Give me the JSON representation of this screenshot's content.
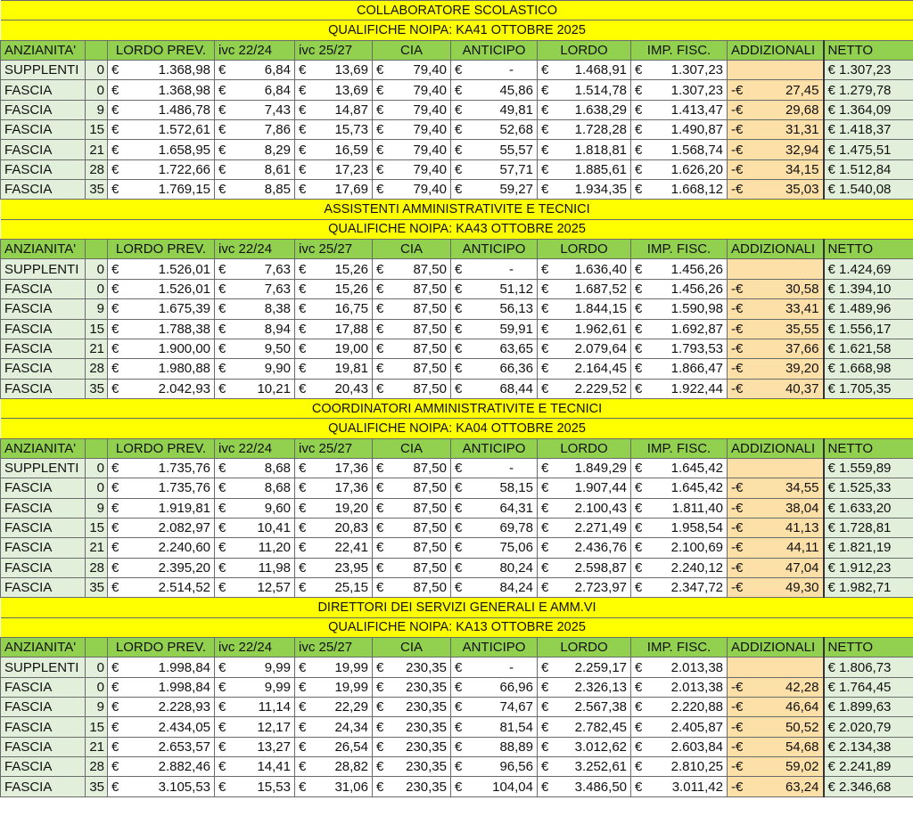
{
  "currency": "€",
  "neg_currency": "-€",
  "columns": [
    "ANZIANITA'",
    "",
    "LORDO PREV.",
    "ivc 22/24",
    "ivc 25/27",
    "CIA",
    "ANTICIPO",
    "LORDO",
    "IMP. FISC.",
    "ADDIZIONALI",
    "NETTO"
  ],
  "colors": {
    "title_bg": "#ffff00",
    "header_bg": "#92d050",
    "label_bg": "#e2efda",
    "addizionali_bg": "#fde0a8",
    "netto_bg": "#e2efda"
  },
  "sections": [
    {
      "title": "COLLABORATORE SCOLASTICO",
      "subtitle": "QUALIFICHE NOIPA: KA41 OTTOBRE 2025",
      "rows": [
        [
          "SUPPLENTI",
          "0",
          "1.368,98",
          "6,84",
          "13,69",
          "79,40",
          "-",
          "1.468,91",
          "1.307,23",
          "",
          "€ 1.307,23"
        ],
        [
          "FASCIA",
          "0",
          "1.368,98",
          "6,84",
          "13,69",
          "79,40",
          "45,86",
          "1.514,78",
          "1.307,23",
          "27,45",
          "€ 1.279,78"
        ],
        [
          "FASCIA",
          "9",
          "1.486,78",
          "7,43",
          "14,87",
          "79,40",
          "49,81",
          "1.638,29",
          "1.413,47",
          "29,68",
          "€ 1.364,09"
        ],
        [
          "FASCIA",
          "15",
          "1.572,61",
          "7,86",
          "15,73",
          "79,40",
          "52,68",
          "1.728,28",
          "1.490,87",
          "31,31",
          "€ 1.418,37"
        ],
        [
          "FASCIA",
          "21",
          "1.658,95",
          "8,29",
          "16,59",
          "79,40",
          "55,57",
          "1.818,81",
          "1.568,74",
          "32,94",
          "€ 1.475,51"
        ],
        [
          "FASCIA",
          "28",
          "1.722,66",
          "8,61",
          "17,23",
          "79,40",
          "57,71",
          "1.885,61",
          "1.626,20",
          "34,15",
          "€ 1.512,84"
        ],
        [
          "FASCIA",
          "35",
          "1.769,15",
          "8,85",
          "17,69",
          "79,40",
          "59,27",
          "1.934,35",
          "1.668,12",
          "35,03",
          "€ 1.540,08"
        ]
      ]
    },
    {
      "title": "ASSISTENTI AMMINISTRATIVITE E TECNICI",
      "subtitle": "QUALIFICHE NOIPA: KA43 OTTOBRE 2025",
      "rows": [
        [
          "SUPPLENTI",
          "0",
          "1.526,01",
          "7,63",
          "15,26",
          "87,50",
          "-",
          "1.636,40",
          "1.456,26",
          "",
          "€ 1.424,69"
        ],
        [
          "FASCIA",
          "0",
          "1.526,01",
          "7,63",
          "15,26",
          "87,50",
          "51,12",
          "1.687,52",
          "1.456,26",
          "30,58",
          "€ 1.394,10"
        ],
        [
          "FASCIA",
          "9",
          "1.675,39",
          "8,38",
          "16,75",
          "87,50",
          "56,13",
          "1.844,15",
          "1.590,98",
          "33,41",
          "€ 1.489,96"
        ],
        [
          "FASCIA",
          "15",
          "1.788,38",
          "8,94",
          "17,88",
          "87,50",
          "59,91",
          "1.962,61",
          "1.692,87",
          "35,55",
          "€ 1.556,17"
        ],
        [
          "FASCIA",
          "21",
          "1.900,00",
          "9,50",
          "19,00",
          "87,50",
          "63,65",
          "2.079,64",
          "1.793,53",
          "37,66",
          "€ 1.621,58"
        ],
        [
          "FASCIA",
          "28",
          "1.980,88",
          "9,90",
          "19,81",
          "87,50",
          "66,36",
          "2.164,45",
          "1.866,47",
          "39,20",
          "€ 1.668,98"
        ],
        [
          "FASCIA",
          "35",
          "2.042,93",
          "10,21",
          "20,43",
          "87,50",
          "68,44",
          "2.229,52",
          "1.922,44",
          "40,37",
          "€ 1.705,35"
        ]
      ]
    },
    {
      "title": "COORDINATORI AMMINISTRATIVITE E TECNICI",
      "subtitle": "QUALIFICHE NOIPA: KA04 OTTOBRE 2025",
      "rows": [
        [
          "SUPPLENTI",
          "0",
          "1.735,76",
          "8,68",
          "17,36",
          "87,50",
          "-",
          "1.849,29",
          "1.645,42",
          "",
          "€ 1.559,89"
        ],
        [
          "FASCIA",
          "0",
          "1.735,76",
          "8,68",
          "17,36",
          "87,50",
          "58,15",
          "1.907,44",
          "1.645,42",
          "34,55",
          "€ 1.525,33"
        ],
        [
          "FASCIA",
          "9",
          "1.919,81",
          "9,60",
          "19,20",
          "87,50",
          "64,31",
          "2.100,43",
          "1.811,40",
          "38,04",
          "€ 1.633,20"
        ],
        [
          "FASCIA",
          "15",
          "2.082,97",
          "10,41",
          "20,83",
          "87,50",
          "69,78",
          "2.271,49",
          "1.958,54",
          "41,13",
          "€ 1.728,81"
        ],
        [
          "FASCIA",
          "21",
          "2.240,60",
          "11,20",
          "22,41",
          "87,50",
          "75,06",
          "2.436,76",
          "2.100,69",
          "44,11",
          "€ 1.821,19"
        ],
        [
          "FASCIA",
          "28",
          "2.395,20",
          "11,98",
          "23,95",
          "87,50",
          "80,24",
          "2.598,87",
          "2.240,12",
          "47,04",
          "€ 1.912,23"
        ],
        [
          "FASCIA",
          "35",
          "2.514,52",
          "12,57",
          "25,15",
          "87,50",
          "84,24",
          "2.723,97",
          "2.347,72",
          "49,30",
          "€ 1.982,71"
        ]
      ]
    },
    {
      "title": "DIRETTORI DEI SERVIZI GENERALI E AMM.VI",
      "subtitle": "QUALIFICHE NOIPA: KA13 OTTOBRE 2025",
      "rows": [
        [
          "SUPPLENTI",
          "0",
          "1.998,84",
          "9,99",
          "19,99",
          "230,35",
          "-",
          "2.259,17",
          "2.013,38",
          "",
          "€ 1.806,73"
        ],
        [
          "FASCIA",
          "0",
          "1.998,84",
          "9,99",
          "19,99",
          "230,35",
          "66,96",
          "2.326,13",
          "2.013,38",
          "42,28",
          "€ 1.764,45"
        ],
        [
          "FASCIA",
          "9",
          "2.228,93",
          "11,14",
          "22,29",
          "230,35",
          "74,67",
          "2.567,38",
          "2.220,88",
          "46,64",
          "€ 1.899,63"
        ],
        [
          "FASCIA",
          "15",
          "2.434,05",
          "12,17",
          "24,34",
          "230,35",
          "81,54",
          "2.782,45",
          "2.405,87",
          "50,52",
          "€ 2.020,79"
        ],
        [
          "FASCIA",
          "21",
          "2.653,57",
          "13,27",
          "26,54",
          "230,35",
          "88,89",
          "3.012,62",
          "2.603,84",
          "54,68",
          "€ 2.134,38"
        ],
        [
          "FASCIA",
          "28",
          "2.882,46",
          "14,41",
          "28,82",
          "230,35",
          "96,56",
          "3.252,61",
          "2.810,25",
          "59,02",
          "€ 2.241,89"
        ],
        [
          "FASCIA",
          "35",
          "3.105,53",
          "15,53",
          "31,06",
          "230,35",
          "104,04",
          "3.486,50",
          "3.011,42",
          "63,24",
          "€ 2.346,68"
        ]
      ]
    }
  ]
}
